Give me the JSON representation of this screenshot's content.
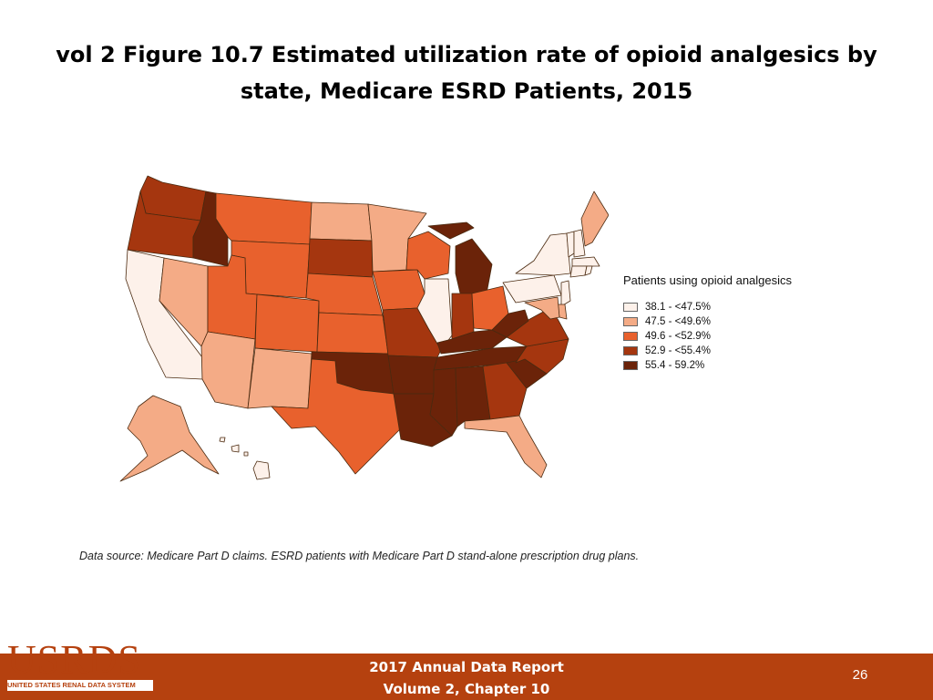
{
  "title": "vol 2 Figure 10.7 Estimated utilization rate of opioid analgesics by state, Medicare ESRD Patients, 2015",
  "colors": {
    "bin1": "#fdf1ea",
    "bin2": "#f4ab86",
    "bin3": "#e8612d",
    "bin4": "#a5360f",
    "bin5": "#6b2309",
    "footer": "#b5410f"
  },
  "legend": {
    "title": "Patients using opioid analgesics",
    "items": [
      {
        "label": "38.1 - <47.5%",
        "color": "#fdf1ea"
      },
      {
        "label": "47.5 - <49.6%",
        "color": "#f4ab86"
      },
      {
        "label": "49.6 - <52.9%",
        "color": "#e8612d"
      },
      {
        "label": "52.9 - <55.4%",
        "color": "#a5360f"
      },
      {
        "label": "55.4 - 59.2%",
        "color": "#6b2309"
      }
    ]
  },
  "map_data": {
    "type": "choropleth",
    "bin_of_state": {
      "WA": 4,
      "OR": 4,
      "CA": 1,
      "NV": 2,
      "ID": 5,
      "MT": 3,
      "WY": 3,
      "UT": 3,
      "AZ": 2,
      "CO": 3,
      "NM": 2,
      "ND": 2,
      "SD": 4,
      "NE": 3,
      "KS": 3,
      "OK": 5,
      "TX": 3,
      "MN": 2,
      "IA": 3,
      "MO": 4,
      "AR": 5,
      "LA": 5,
      "WI": 3,
      "IL": 1,
      "MI": 5,
      "IN": 4,
      "OH": 3,
      "KY": 5,
      "TN": 5,
      "MS": 5,
      "AL": 5,
      "GA": 4,
      "FL": 2,
      "SC": 5,
      "NC": 4,
      "VA": 4,
      "WV": 5,
      "PA": 1,
      "NY": 1,
      "VT": 1,
      "NH": 1,
      "ME": 2,
      "MA": 1,
      "CT": 1,
      "RI": 1,
      "NJ": 1,
      "DE": 2,
      "MD": 2,
      "AK": 2,
      "HI": 1
    }
  },
  "source_note": "Data source: Medicare Part D claims. ESRD patients with Medicare Part D stand-alone prescription drug plans.",
  "footer": {
    "logo_text": "USRDS",
    "logo_subtext": "UNITED STATES RENAL DATA SYSTEM",
    "report_line1": "2017 Annual Data Report",
    "report_line2": "Volume 2, Chapter 10",
    "page_number": "26"
  }
}
